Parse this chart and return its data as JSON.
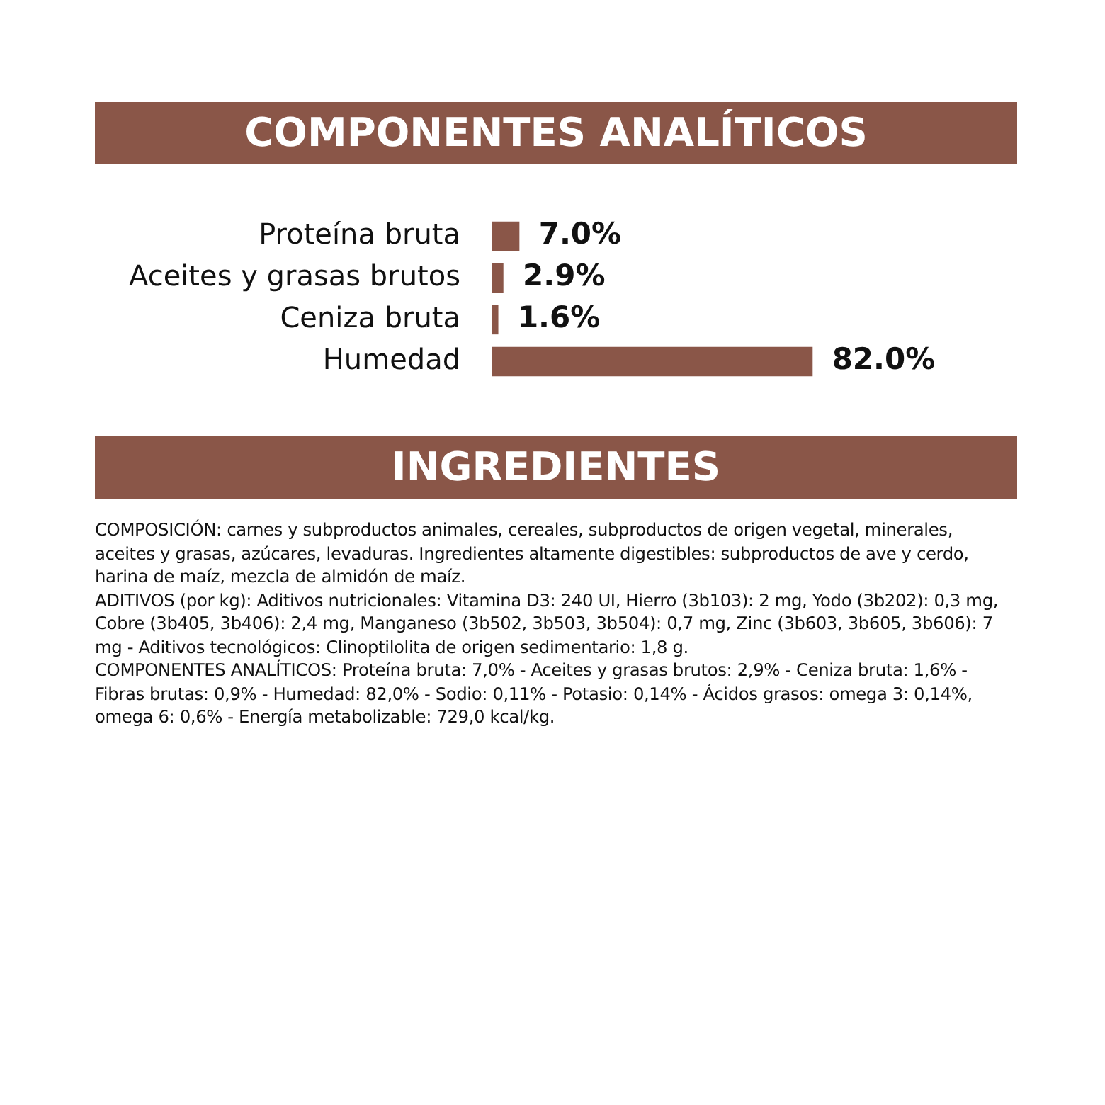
{
  "chart_data": {
    "type": "bar",
    "orientation": "horizontal",
    "title": "COMPONENTES ANALÍTICOS",
    "subtitle": "INGREDIENTES",
    "categories": [
      "Proteína bruta",
      "Aceites y grasas brutos",
      "Ceniza bruta",
      "Humedad"
    ],
    "values": [
      7.0,
      2.9,
      1.6,
      82.0
    ],
    "value_labels": [
      "7.0%",
      "2.9%",
      "1.6%",
      "82.0%"
    ],
    "color": "#8a5648",
    "grid": false,
    "legend": false,
    "tick_labels": "y",
    "annotations": [
      "COMPOSICIÓN: carnes y subproductos animales, cereales, subproductos de origen vegetal, minerales, aceites y grasas, azúcares, levaduras. Ingredientes altamente digestibles: subproductos de ave y cerdo, harina de maíz, mezcla de almidón de maíz.",
      "ADITIVOS (por kg): Aditivos nutricionales: Vitamina D3: 240 UI, Hierro (3b103): 2 mg, Yodo (3b202): 0,3 mg, Cobre (3b405, 3b406): 2,4 mg, Manganeso (3b502, 3b503, 3b504): 0,7 mg, Zinc (3b603, 3b605, 3b606): 7 mg - Aditivos tecnológicos: Clinoptilolita de origen sedimentario: 1,8 g.",
      "COMPONENTES ANALÍTICOS: Proteína bruta: 7,0% - Aceites y grasas brutos: 2,9% - Ceniza bruta: 1,6% - Fibras brutas: 0,9% - Humedad: 82,0% - Sodio: 0,11% - Potasio: 0,14% - Ácidos grasos: omega 3: 0,14%, omega 6: 0,6% - Energía metabolizable: 729,0 kcal/kg."
    ]
  }
}
